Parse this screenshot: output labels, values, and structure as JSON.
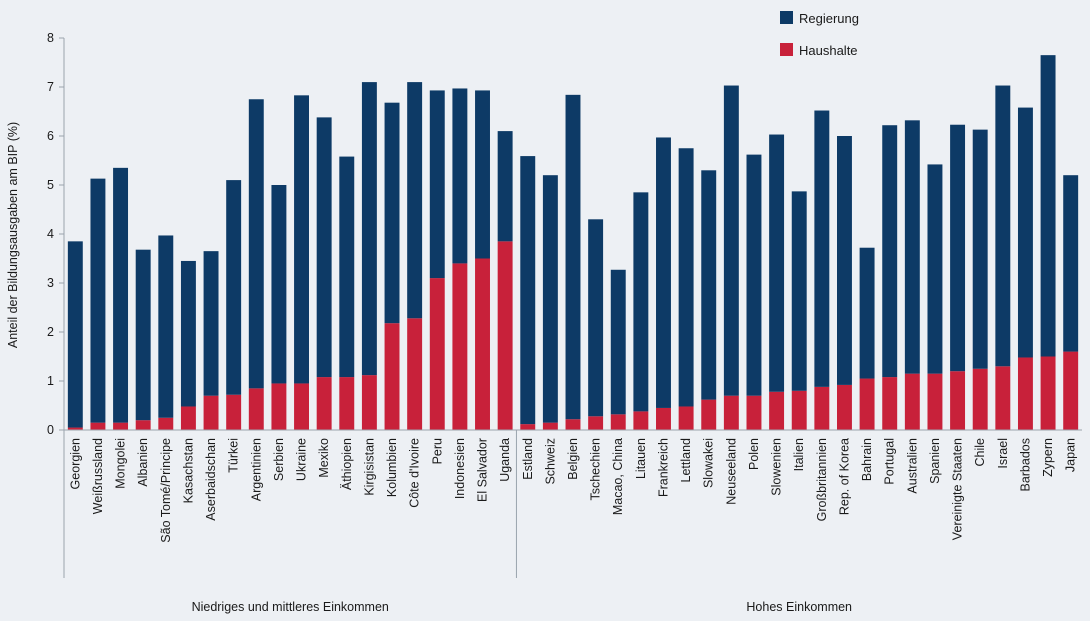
{
  "chart_data": {
    "type": "bar",
    "stacked": true,
    "title": "",
    "ylabel": "Anteil der Bildungsausgaben am BIP (%)",
    "ylim": [
      0,
      8
    ],
    "yticks": [
      "0",
      "1",
      "2",
      "3",
      "4",
      "5",
      "6",
      "7",
      "8"
    ],
    "grid": false,
    "legend_position": "top-right",
    "categories": [
      "Georgien",
      "Weißrussland",
      "Mongolei",
      "Albanien",
      "São Tomé/Principe",
      "Kasachstan",
      "Aserbaidschan",
      "Türkei",
      "Argentinien",
      "Serbien",
      "Ukraine",
      "Mexiko",
      "Äthiopien",
      "Kirgisistan",
      "Kolumbien",
      "Côte d'Ivoire",
      "Peru",
      "Indonesien",
      "El Salvador",
      "Uganda",
      "Estland",
      "Schweiz",
      "Belgien",
      "Tschechien",
      "Macao, China",
      "Litauen",
      "Frankreich",
      "Lettland",
      "Slowakei",
      "Neuseeland",
      "Polen",
      "Slowenien",
      "Italien",
      "Großbritannien",
      "Rep. of Korea",
      "Bahrain",
      "Portugal",
      "Australien",
      "Spanien",
      "Vereinigte Staaten",
      "Chile",
      "Israel",
      "Barbados",
      "Zypern",
      "Japan"
    ],
    "series": [
      {
        "name": "Haushalte",
        "color": "#c8213a",
        "values": [
          0.05,
          0.15,
          0.15,
          0.2,
          0.25,
          0.48,
          0.7,
          0.72,
          0.85,
          0.95,
          0.95,
          1.08,
          1.08,
          1.12,
          2.18,
          2.28,
          3.1,
          3.4,
          3.5,
          3.85,
          0.12,
          0.15,
          0.22,
          0.28,
          0.32,
          0.38,
          0.45,
          0.48,
          0.62,
          0.7,
          0.7,
          0.78,
          0.8,
          0.88,
          0.92,
          1.05,
          1.08,
          1.15,
          1.15,
          1.2,
          1.25,
          1.3,
          1.48,
          1.5,
          1.6
        ]
      },
      {
        "name": "Regierung",
        "color": "#0d3a66",
        "values": [
          3.8,
          4.98,
          5.2,
          3.48,
          3.72,
          2.97,
          2.95,
          4.38,
          5.9,
          4.05,
          5.88,
          5.3,
          4.5,
          5.98,
          4.5,
          4.82,
          3.83,
          3.57,
          3.43,
          2.25,
          5.47,
          5.05,
          6.62,
          4.02,
          2.95,
          4.47,
          5.52,
          5.27,
          4.68,
          6.33,
          4.92,
          5.25,
          4.07,
          5.64,
          5.08,
          2.67,
          5.14,
          5.17,
          4.27,
          5.03,
          4.88,
          5.73,
          5.1,
          6.15,
          3.6
        ]
      }
    ],
    "groups": [
      {
        "label": "Niedriges und mittleres Einkommen",
        "start": 0,
        "end": 19
      },
      {
        "label": "Hohes Einkommen",
        "start": 20,
        "end": 44
      }
    ]
  }
}
